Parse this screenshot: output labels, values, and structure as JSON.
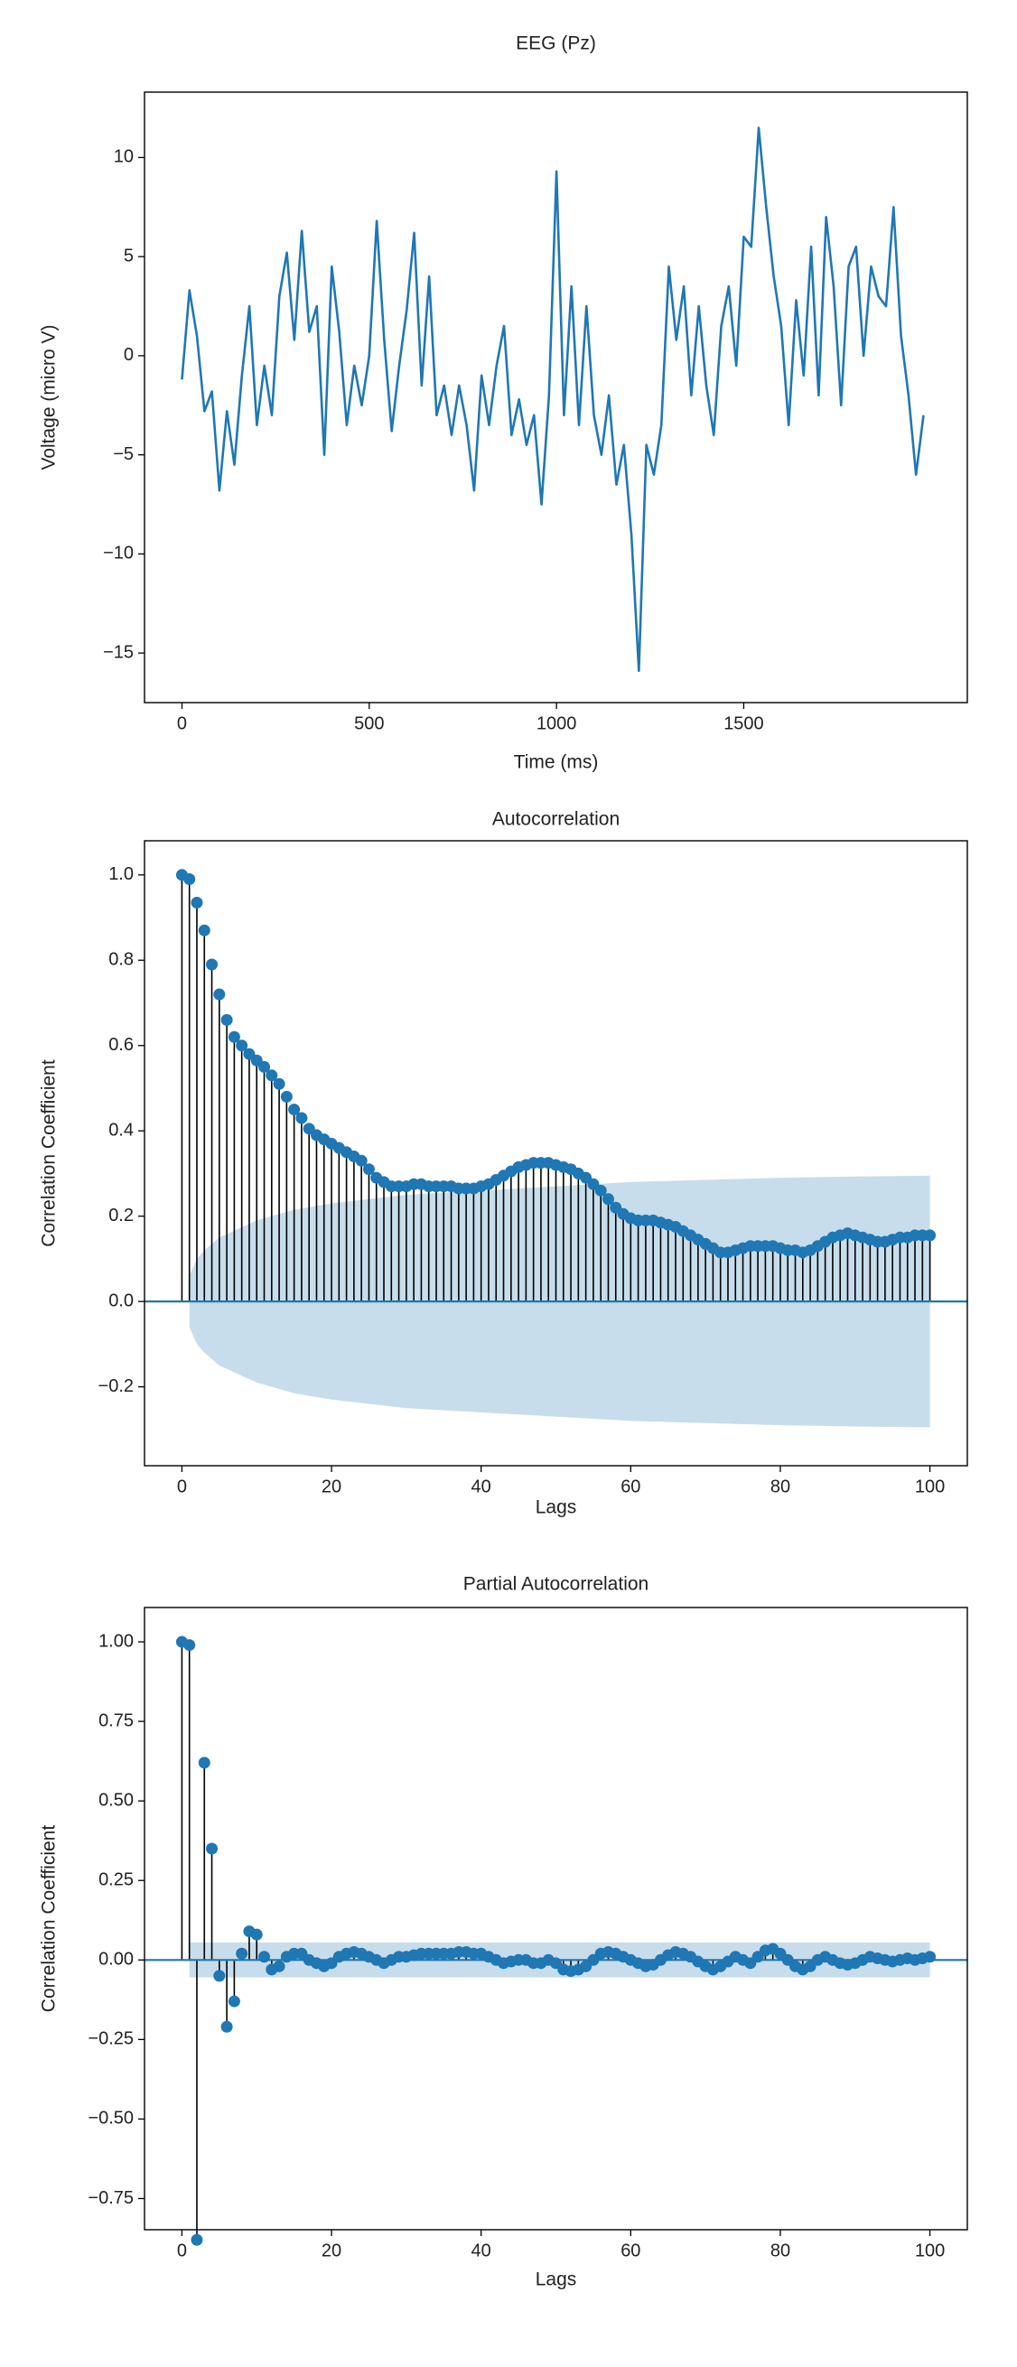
{
  "chart_data": [
    {
      "type": "line",
      "title": "EEG (Pz)",
      "x_label": "Time (ms)",
      "y_label": "Voltage (micro V)",
      "color": "#1f77b4",
      "x": [
        0,
        20,
        40,
        60,
        80,
        100,
        120,
        140,
        160,
        180,
        200,
        220,
        240,
        260,
        280,
        300,
        320,
        340,
        360,
        380,
        400,
        420,
        440,
        460,
        480,
        500,
        520,
        540,
        560,
        580,
        600,
        620,
        640,
        660,
        680,
        700,
        720,
        740,
        760,
        780,
        800,
        820,
        840,
        860,
        880,
        900,
        920,
        940,
        960,
        980,
        1000,
        1020,
        1040,
        1060,
        1080,
        1100,
        1120,
        1140,
        1160,
        1180,
        1200,
        1220,
        1240,
        1260,
        1280,
        1300,
        1320,
        1340,
        1360,
        1380,
        1400,
        1420,
        1440,
        1460,
        1480,
        1500,
        1520,
        1540,
        1560,
        1580,
        1600,
        1620,
        1640,
        1660,
        1680,
        1700,
        1720,
        1740,
        1760,
        1780,
        1800,
        1820,
        1840,
        1860,
        1880,
        1900,
        1920,
        1940,
        1960,
        1980
      ],
      "values": [
        -1.2,
        3.3,
        1.0,
        -2.8,
        -1.8,
        -6.8,
        -2.8,
        -5.5,
        -1,
        2.5,
        -3.5,
        -0.5,
        -3,
        3,
        5.2,
        0.8,
        6.3,
        1.2,
        2.5,
        -5,
        4.5,
        1.2,
        -3.5,
        -0.5,
        -2.5,
        0,
        6.8,
        0.8,
        -3.8,
        -0.5,
        2.3,
        6.2,
        -1.5,
        4,
        -3,
        -1.5,
        -4,
        -1.5,
        -3.5,
        -6.8,
        -1,
        -3.5,
        -0.5,
        1.5,
        -4,
        -2.2,
        -4.5,
        -3,
        -7.5,
        -2,
        9.3,
        -3,
        3.5,
        -3.5,
        2.5,
        -3,
        -5,
        -2,
        -6.5,
        -4.5,
        -9,
        -15.9,
        -4.5,
        -6,
        -3.5,
        4.5,
        0.8,
        3.5,
        -2,
        2.5,
        -1.5,
        -4,
        1.5,
        3.5,
        -0.5,
        6,
        5.5,
        11.5,
        7.5,
        4,
        1.5,
        -3.5,
        2.8,
        -1,
        5.5,
        -2,
        7,
        3.5,
        -2.5,
        4.5,
        5.5,
        0,
        4.5,
        3,
        2.5,
        7.5,
        1,
        -2,
        -6,
        -3
      ],
      "xlim": [
        -100,
        2097
      ],
      "ylim": [
        -17.5,
        13.3
      ],
      "xticks": [
        0,
        500,
        1000,
        1500
      ],
      "yticks": [
        {
          "value": -15,
          "label": "−15"
        },
        {
          "value": -10,
          "label": "−10"
        },
        {
          "value": -5,
          "label": "−5"
        },
        0,
        5,
        10
      ]
    },
    {
      "type": "stem",
      "title": "Autocorrelation",
      "x_label": "Lags",
      "y_label": "Correlation Coefficient",
      "color": "#1f77b4",
      "stem_color": "#000000",
      "band_color": "#1f77b4",
      "zero_line": true,
      "x": [
        0,
        1,
        2,
        3,
        4,
        5,
        6,
        7,
        8,
        9,
        10,
        11,
        12,
        13,
        14,
        15,
        16,
        17,
        18,
        19,
        20,
        21,
        22,
        23,
        24,
        25,
        26,
        27,
        28,
        29,
        30,
        31,
        32,
        33,
        34,
        35,
        36,
        37,
        38,
        39,
        40,
        41,
        42,
        43,
        44,
        45,
        46,
        47,
        48,
        49,
        50,
        51,
        52,
        53,
        54,
        55,
        56,
        57,
        58,
        59,
        60,
        61,
        62,
        63,
        64,
        65,
        66,
        67,
        68,
        69,
        70,
        71,
        72,
        73,
        74,
        75,
        76,
        77,
        78,
        79,
        80,
        81,
        82,
        83,
        84,
        85,
        86,
        87,
        88,
        89,
        90,
        91,
        92,
        93,
        94,
        95,
        96,
        97,
        98,
        99,
        100
      ],
      "values": [
        1.0,
        0.99,
        0.935,
        0.87,
        0.79,
        0.72,
        0.66,
        0.62,
        0.6,
        0.58,
        0.565,
        0.55,
        0.53,
        0.51,
        0.48,
        0.45,
        0.43,
        0.405,
        0.39,
        0.38,
        0.37,
        0.36,
        0.35,
        0.34,
        0.33,
        0.31,
        0.29,
        0.28,
        0.27,
        0.27,
        0.27,
        0.275,
        0.275,
        0.27,
        0.27,
        0.27,
        0.27,
        0.265,
        0.265,
        0.265,
        0.27,
        0.275,
        0.285,
        0.295,
        0.305,
        0.315,
        0.32,
        0.325,
        0.325,
        0.325,
        0.32,
        0.315,
        0.31,
        0.3,
        0.29,
        0.275,
        0.26,
        0.24,
        0.22,
        0.205,
        0.195,
        0.19,
        0.19,
        0.19,
        0.185,
        0.18,
        0.175,
        0.165,
        0.155,
        0.145,
        0.135,
        0.125,
        0.115,
        0.115,
        0.12,
        0.125,
        0.13,
        0.13,
        0.13,
        0.13,
        0.125,
        0.12,
        0.12,
        0.115,
        0.12,
        0.13,
        0.14,
        0.15,
        0.155,
        0.16,
        0.155,
        0.15,
        0.145,
        0.14,
        0.14,
        0.145,
        0.15,
        0.15,
        0.155,
        0.155,
        0.155
      ],
      "band": {
        "x": [
          1,
          2,
          3,
          5,
          10,
          15,
          20,
          30,
          40,
          50,
          60,
          70,
          80,
          90,
          100
        ],
        "upper": [
          0.06,
          0.1,
          0.12,
          0.15,
          0.19,
          0.215,
          0.23,
          0.25,
          0.26,
          0.27,
          0.28,
          0.285,
          0.29,
          0.293,
          0.295
        ],
        "lower": [
          -0.06,
          -0.1,
          -0.12,
          -0.15,
          -0.19,
          -0.215,
          -0.23,
          -0.25,
          -0.26,
          -0.27,
          -0.28,
          -0.285,
          -0.29,
          -0.293,
          -0.295
        ]
      },
      "xlim": [
        -5,
        105
      ],
      "ylim": [
        -0.385,
        1.08
      ],
      "xticks": [
        0,
        20,
        40,
        60,
        80,
        100
      ],
      "yticks": [
        {
          "value": -0.2,
          "label": "−0.2"
        },
        {
          "value": 0,
          "label": "0.0"
        },
        0.2,
        0.4,
        0.6,
        0.8,
        {
          "value": 1,
          "label": "1.0"
        }
      ]
    },
    {
      "type": "stem",
      "title": "Partial Autocorrelation",
      "x_label": "Lags",
      "y_label": "Correlation Coefficient",
      "color": "#1f77b4",
      "stem_color": "#000000",
      "band_color": "#1f77b4",
      "zero_line": true,
      "x": [
        0,
        1,
        2,
        3,
        4,
        5,
        6,
        7,
        8,
        9,
        10,
        11,
        12,
        13,
        14,
        15,
        16,
        17,
        18,
        19,
        20,
        21,
        22,
        23,
        24,
        25,
        26,
        27,
        28,
        29,
        30,
        31,
        32,
        33,
        34,
        35,
        36,
        37,
        38,
        39,
        40,
        41,
        42,
        43,
        44,
        45,
        46,
        47,
        48,
        49,
        50,
        51,
        52,
        53,
        54,
        55,
        56,
        57,
        58,
        59,
        60,
        61,
        62,
        63,
        64,
        65,
        66,
        67,
        68,
        69,
        70,
        71,
        72,
        73,
        74,
        75,
        76,
        77,
        78,
        79,
        80,
        81,
        82,
        83,
        84,
        85,
        86,
        87,
        88,
        89,
        90,
        91,
        92,
        93,
        94,
        95,
        96,
        97,
        98,
        99,
        100
      ],
      "values": [
        1.0,
        0.99,
        -0.88,
        0.62,
        0.35,
        -0.05,
        -0.21,
        -0.13,
        0.02,
        0.09,
        0.08,
        0.01,
        -0.03,
        -0.02,
        0.01,
        0.02,
        0.02,
        0.0,
        -0.01,
        -0.02,
        -0.01,
        0.01,
        0.02,
        0.025,
        0.02,
        0.01,
        0.0,
        -0.01,
        0.0,
        0.01,
        0.01,
        0.015,
        0.02,
        0.02,
        0.02,
        0.02,
        0.02,
        0.025,
        0.025,
        0.02,
        0.02,
        0.01,
        0.0,
        -0.01,
        -0.005,
        0.0,
        0.0,
        -0.01,
        -0.01,
        0.0,
        -0.01,
        -0.03,
        -0.035,
        -0.03,
        -0.02,
        0.0,
        0.02,
        0.025,
        0.02,
        0.01,
        0.0,
        -0.01,
        -0.02,
        -0.015,
        0.0,
        0.015,
        0.025,
        0.02,
        0.01,
        -0.005,
        -0.02,
        -0.03,
        -0.02,
        -0.005,
        0.01,
        0.0,
        -0.01,
        0.01,
        0.03,
        0.035,
        0.02,
        0.0,
        -0.02,
        -0.03,
        -0.02,
        0.0,
        0.01,
        0.0,
        -0.01,
        -0.015,
        -0.01,
        0.0,
        0.01,
        0.005,
        0.0,
        -0.005,
        0.0,
        0.005,
        0.0,
        0.005,
        0.01
      ],
      "band": {
        "x": [
          1,
          100
        ],
        "upper": [
          0.055,
          0.055
        ],
        "lower": [
          -0.055,
          -0.055
        ]
      },
      "xlim": [
        -5,
        105
      ],
      "ylim": [
        -0.848,
        1.108
      ],
      "xticks": [
        0,
        20,
        40,
        60,
        80,
        100
      ],
      "yticks": [
        {
          "value": -0.75,
          "label": "−0.75"
        },
        {
          "value": -0.5,
          "label": "−0.50"
        },
        {
          "value": -0.25,
          "label": "−0.25"
        },
        {
          "value": 0,
          "label": "0.00"
        },
        0.25,
        {
          "value": 0.5,
          "label": "0.50"
        },
        0.75,
        {
          "value": 1,
          "label": "1.00"
        }
      ]
    }
  ]
}
